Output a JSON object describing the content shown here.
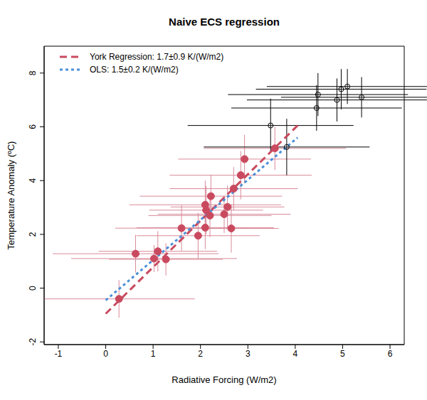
{
  "chart_data": {
    "type": "scatter",
    "title": "Naive ECS regression",
    "x_label": "Radiative Forcing (W/m2)",
    "y_label": "Temperature Anomaly (ºC)",
    "xlim": [
      -1.3,
      6.3
    ],
    "ylim": [
      -2.1,
      9.0
    ],
    "xticks": [
      -1,
      0,
      1,
      2,
      3,
      4,
      5,
      6
    ],
    "yticks": [
      -2,
      0,
      2,
      4,
      6,
      8
    ],
    "grid": false,
    "legend": "upper left",
    "series": [
      {
        "name": "York Regression: 1.7±0.9 K/(W/m2)",
        "type": "line",
        "color": "#c94a5f",
        "line_style": "dashed",
        "x": [
          0,
          4.05
        ],
        "values": [
          -0.95,
          6.05
        ]
      },
      {
        "name": "OLS: 1.5±0.2 K/(W/m2)",
        "type": "line",
        "color": "#4a90d9",
        "line_style": "dotted",
        "x": [
          0,
          4.05
        ],
        "values": [
          -0.45,
          5.6
        ]
      },
      {
        "type": "scatter",
        "color": "#c94a5f",
        "error_color": "#d98a9a",
        "marker": "filled circle",
        "x": [
          0.28,
          0.63,
          1.02,
          1.1,
          1.27,
          1.6,
          1.95,
          2.1,
          2.1,
          2.12,
          2.2,
          2.22,
          2.5,
          2.57,
          2.65,
          2.7,
          2.85,
          2.93,
          3.57
        ],
        "values": [
          -0.4,
          1.28,
          1.1,
          1.37,
          1.07,
          2.23,
          1.95,
          2.25,
          3.1,
          2.9,
          2.7,
          3.42,
          2.75,
          3.02,
          2.22,
          3.7,
          4.2,
          4.8,
          5.2
        ],
        "x_error": [
          1.6,
          1.75,
          1.75,
          1.25,
          1.2,
          1.4,
          1.3,
          1.45,
          1.6,
          1.2,
          1.3,
          1.5,
          1.4,
          1.2,
          1.0,
          1.35,
          1.5,
          1.4,
          1.5
        ],
        "y_error": [
          0.7,
          0.7,
          0.5,
          0.75,
          0.6,
          0.85,
          0.85,
          0.8,
          0.9,
          0.9,
          0.8,
          0.8,
          0.7,
          0.8,
          0.9,
          0.8,
          0.9,
          0.9,
          0.8
        ]
      },
      {
        "type": "scatter",
        "color": "#000000",
        "error_color": "#000000",
        "marker": "open circle",
        "x": [
          3.48,
          3.82,
          4.45,
          4.48,
          4.88,
          4.97,
          5.1,
          5.4
        ],
        "values": [
          6.05,
          5.25,
          6.7,
          7.2,
          7.0,
          7.4,
          7.5,
          7.1
        ],
        "x_error": [
          1.75,
          1.75,
          1.8,
          1.9,
          1.9,
          1.8,
          1.7,
          1.7
        ],
        "y_error": [
          1.0,
          1.05,
          0.85,
          0.8,
          0.8,
          0.75,
          0.65,
          0.75
        ]
      }
    ]
  }
}
